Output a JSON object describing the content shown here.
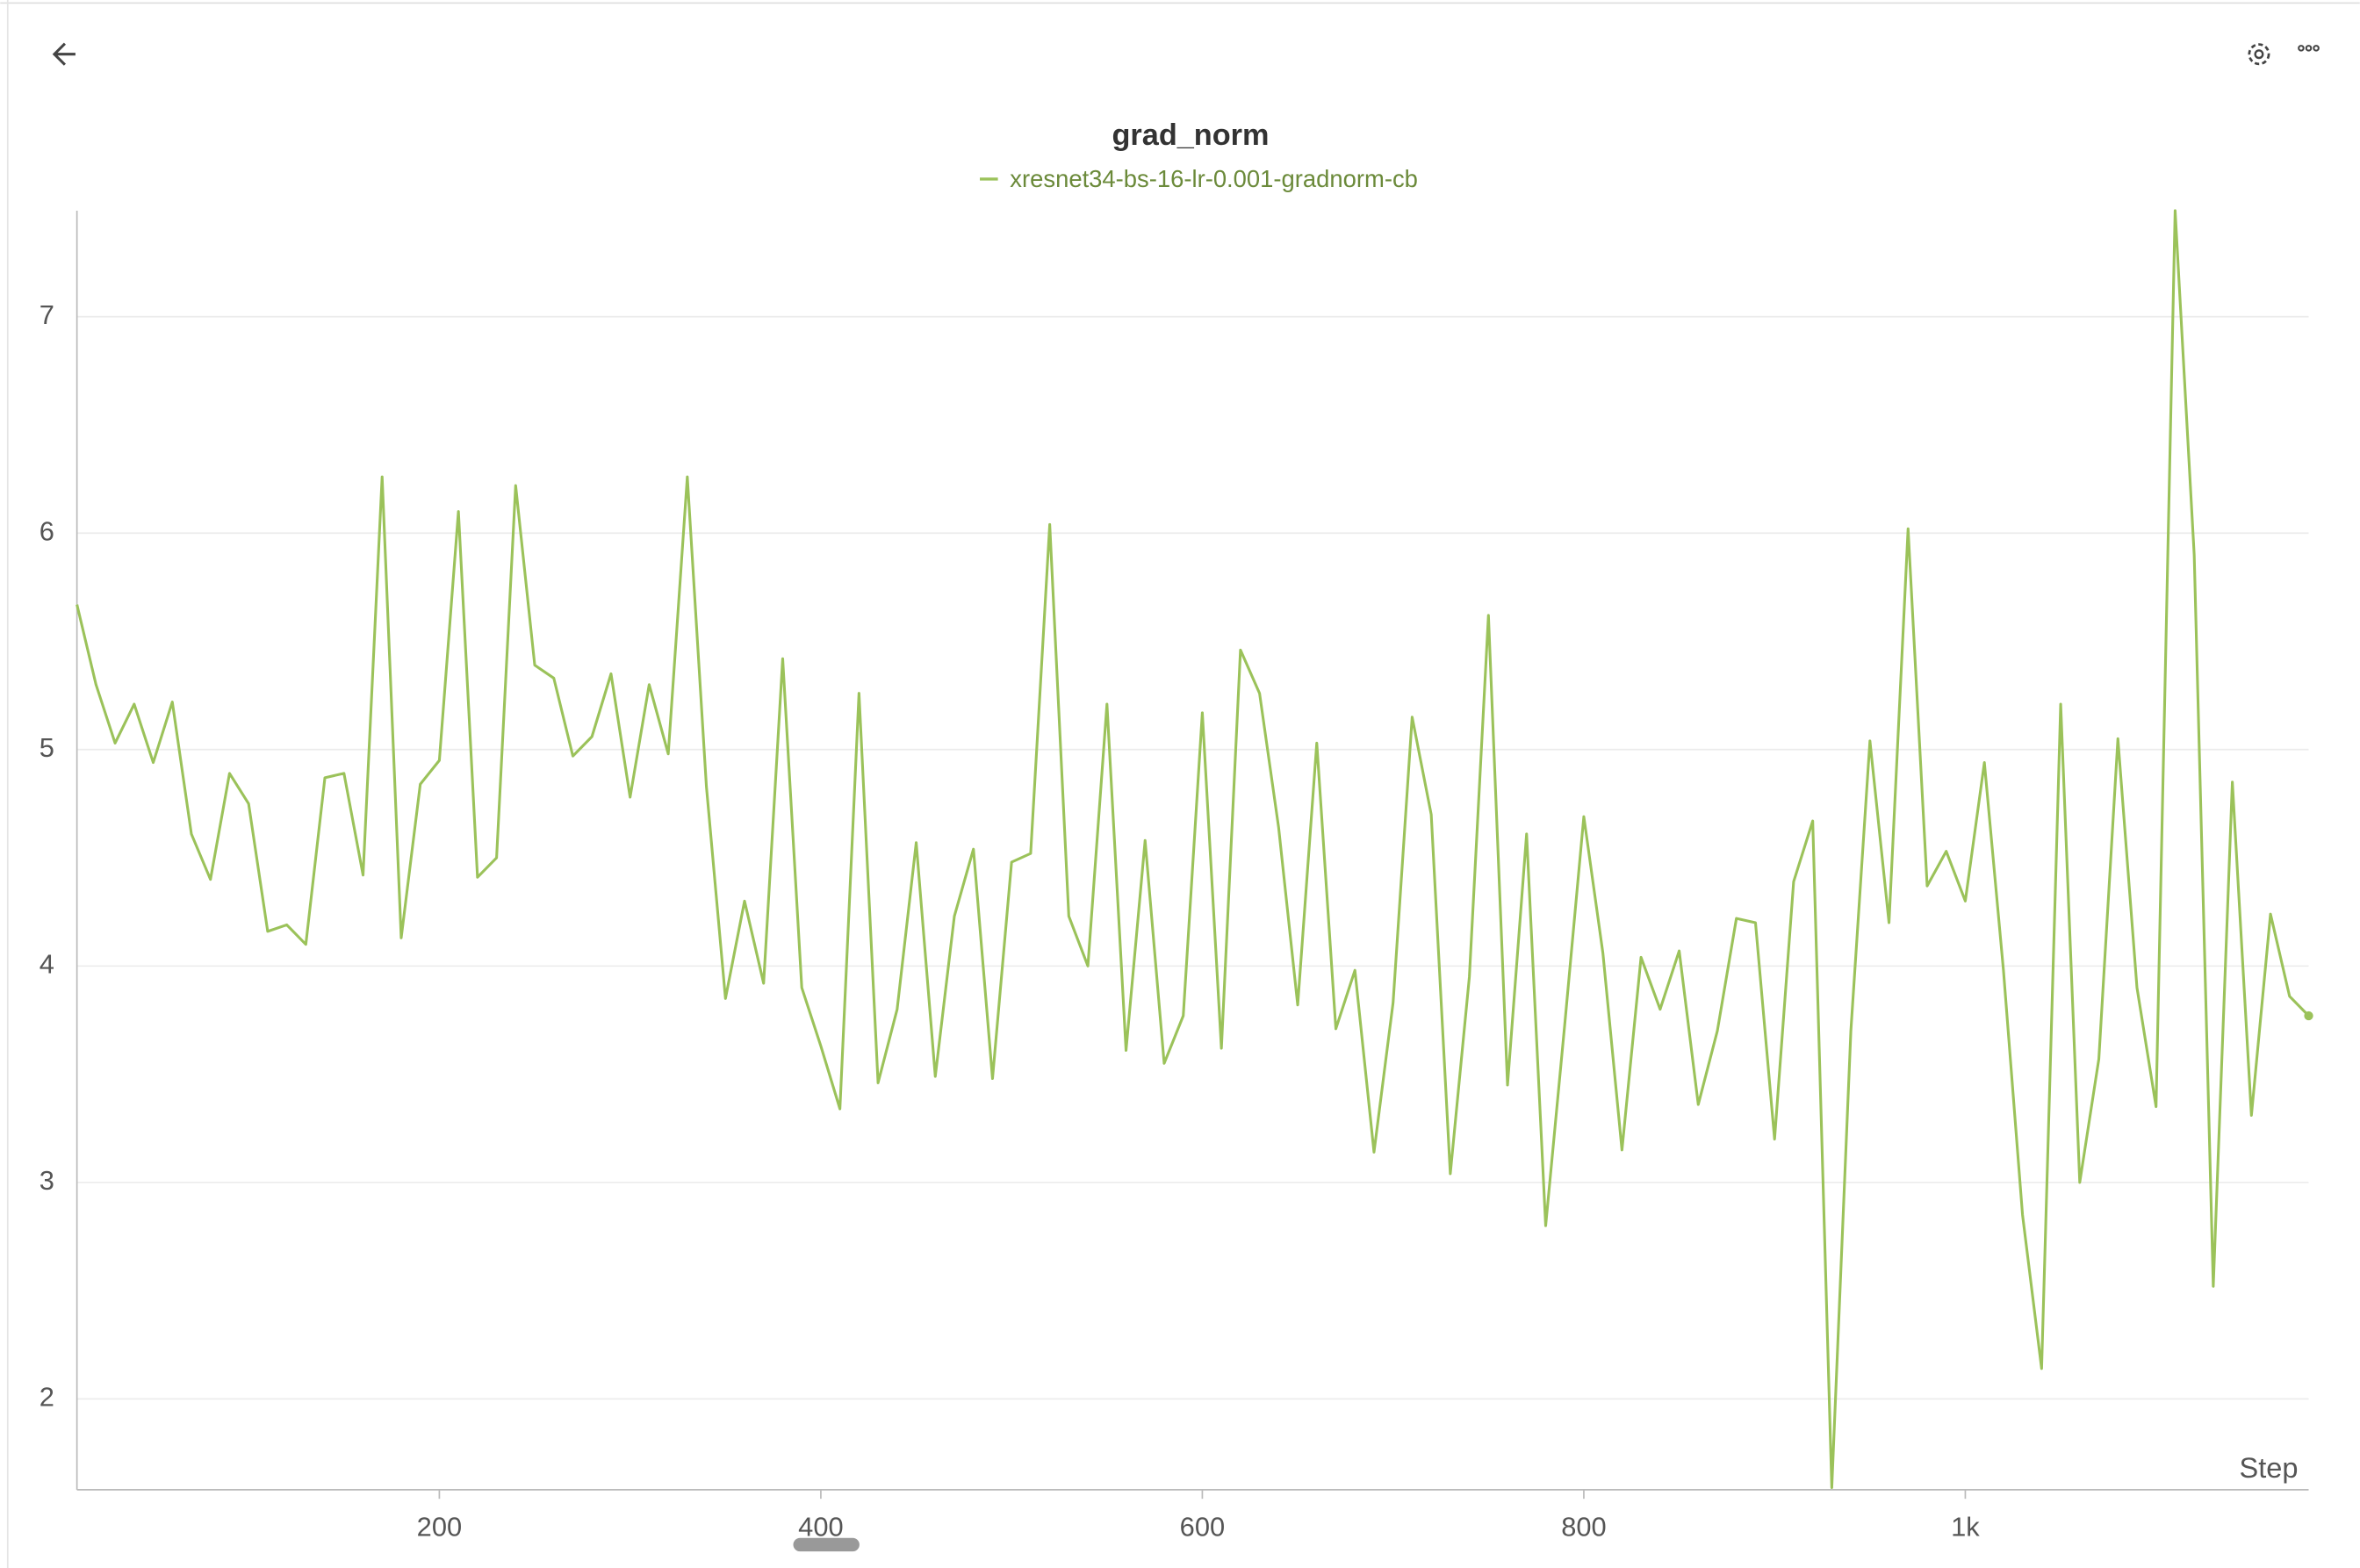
{
  "chart_data": {
    "type": "line",
    "title": "grad_norm",
    "x_label": "Step",
    "x": [
      10,
      20,
      30,
      40,
      50,
      60,
      70,
      80,
      90,
      100,
      110,
      120,
      130,
      140,
      150,
      160,
      170,
      180,
      190,
      200,
      210,
      220,
      230,
      240,
      250,
      260,
      270,
      280,
      290,
      300,
      310,
      320,
      330,
      340,
      350,
      360,
      370,
      380,
      390,
      400,
      410,
      420,
      430,
      440,
      450,
      460,
      470,
      480,
      490,
      500,
      510,
      520,
      530,
      540,
      550,
      560,
      570,
      580,
      590,
      600,
      610,
      620,
      630,
      640,
      650,
      660,
      670,
      680,
      690,
      700,
      710,
      720,
      730,
      740,
      750,
      760,
      770,
      780,
      790,
      800,
      810,
      820,
      830,
      840,
      850,
      860,
      870,
      880,
      890,
      900,
      910,
      920,
      930,
      940,
      950,
      960,
      970,
      980,
      990,
      1000,
      1010,
      1020,
      1030,
      1040,
      1050,
      1060,
      1070,
      1080,
      1090,
      1100,
      1110,
      1120,
      1130,
      1140,
      1150,
      1160,
      1170,
      1180
    ],
    "series": [
      {
        "name": "xresnet34-bs-16-lr-0.001-gradnorm-cb",
        "color": "#9bc25a",
        "values": [
          5.67,
          5.3,
          5.03,
          5.21,
          4.94,
          5.22,
          4.61,
          4.4,
          4.89,
          4.75,
          4.16,
          4.19,
          4.1,
          4.87,
          4.89,
          4.42,
          6.26,
          4.13,
          4.84,
          4.95,
          6.1,
          4.41,
          4.5,
          6.22,
          5.39,
          5.33,
          4.97,
          5.06,
          5.35,
          4.78,
          5.3,
          4.98,
          6.26,
          4.83,
          3.85,
          4.3,
          3.92,
          5.42,
          3.9,
          3.63,
          3.34,
          5.26,
          3.46,
          3.8,
          4.57,
          3.49,
          4.23,
          4.54,
          3.48,
          4.48,
          4.52,
          6.04,
          4.23,
          4.0,
          5.21,
          3.61,
          4.58,
          3.55,
          3.77,
          5.17,
          3.62,
          5.46,
          5.26,
          4.64,
          3.82,
          5.03,
          3.71,
          3.98,
          3.14,
          3.83,
          5.15,
          4.7,
          3.04,
          3.95,
          5.62,
          3.45,
          4.61,
          2.8,
          3.73,
          4.69,
          4.06,
          3.15,
          4.04,
          3.8,
          4.07,
          3.36,
          3.7,
          4.22,
          4.2,
          3.2,
          4.39,
          4.67,
          1.59,
          3.7,
          5.04,
          4.2,
          6.02,
          4.37,
          4.53,
          4.3,
          4.94,
          3.98,
          2.85,
          2.14,
          5.21,
          3.0,
          3.57,
          5.05,
          3.9,
          3.35,
          7.49,
          5.9,
          2.52,
          4.85,
          3.31,
          4.24,
          3.86,
          3.77
        ]
      }
    ],
    "xlim": [
      10,
      1180
    ],
    "xticks": [
      200,
      400,
      600,
      800,
      {
        "value": 1000,
        "label": "1k"
      }
    ],
    "ylim": [
      1.58,
      7.49
    ],
    "yticks": [
      2,
      3,
      4,
      5,
      6,
      7
    ],
    "grid": true
  }
}
